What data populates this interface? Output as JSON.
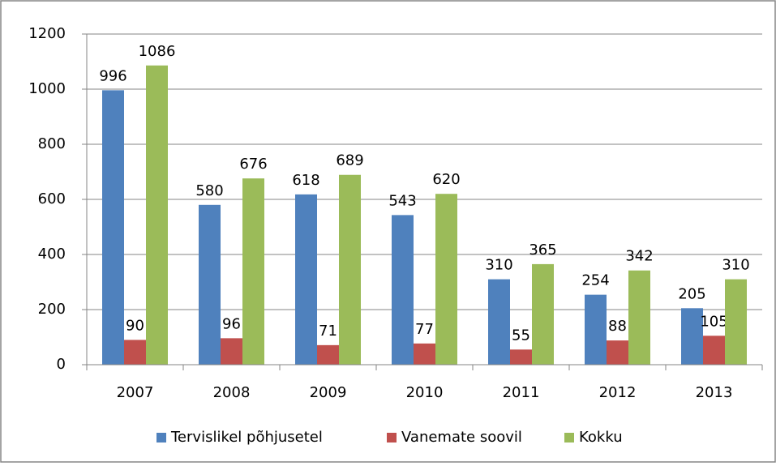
{
  "chart_data": {
    "type": "bar",
    "categories": [
      "2007",
      "2008",
      "2009",
      "2010",
      "2011",
      "2012",
      "2013"
    ],
    "series": [
      {
        "name": "Tervislikel põhjusetel",
        "color": "#4f81bd",
        "values": [
          996,
          580,
          618,
          543,
          310,
          254,
          205
        ]
      },
      {
        "name": "Vanemate soovil",
        "color": "#c0504d",
        "values": [
          90,
          96,
          71,
          77,
          55,
          88,
          105
        ]
      },
      {
        "name": "Kokku",
        "color": "#9bbb59",
        "values": [
          1086,
          676,
          689,
          620,
          365,
          342,
          310
        ]
      }
    ],
    "ylim": [
      0,
      1200
    ],
    "yticks": [
      0,
      200,
      400,
      600,
      800,
      1000,
      1200
    ],
    "grid": true,
    "legend": "bottom"
  }
}
